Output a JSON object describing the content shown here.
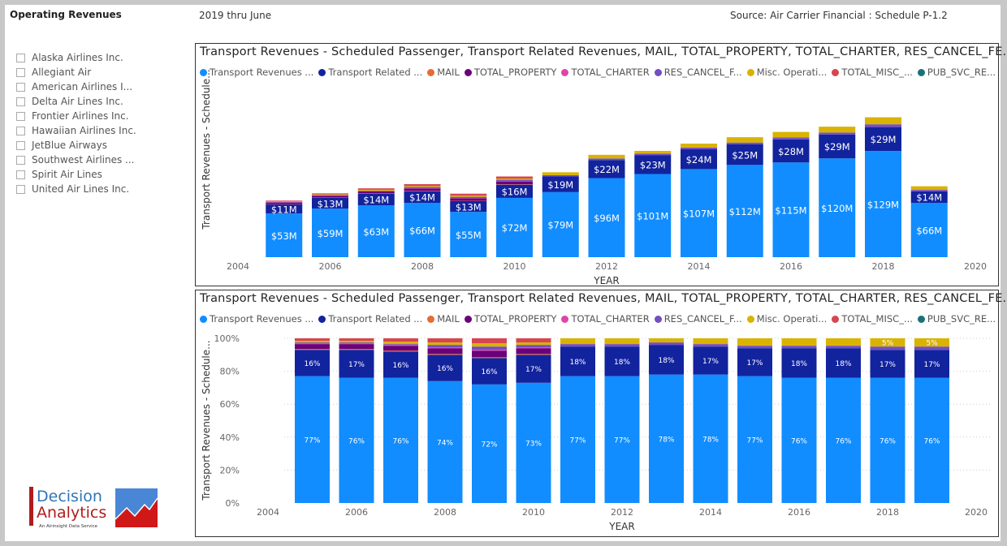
{
  "header": {
    "title": "Operating Revenues",
    "period": "2019 thru June",
    "source": "Source: Air Carrier Financial : Schedule P-1.2"
  },
  "slicer": {
    "items": [
      "Alaska Airlines Inc.",
      "Allegiant Air",
      "American Airlines I...",
      "Delta Air Lines Inc.",
      "Frontier Airlines Inc.",
      "Hawaiian Airlines Inc.",
      "JetBlue Airways",
      "Southwest Airlines ...",
      "Spirit Air Lines",
      "United Air Lines Inc."
    ]
  },
  "logo": {
    "line1": "Decision",
    "line2": "Analytics",
    "tagline": "An Airinsight Data Service"
  },
  "colors": {
    "Transport Revenues ...": "#118DFF",
    "Transport Related ...": "#12239E",
    "MAIL": "#E66C37",
    "TOTAL_PROPERTY": "#6B007B",
    "TOTAL_CHARTER": "#E044A7",
    "RES_CANCEL_F...": "#744EC2",
    "Misc. Operati...": "#D9B300",
    "TOTAL_MISC_...": "#D64550",
    "PUB_SVC_RE...": "#197278"
  },
  "chart_data": [
    {
      "type": "bar",
      "stacked": true,
      "title": "Transport Revenues - Scheduled Passenger, Transport Related Revenues, MAIL, TOTAL_PROPERTY, TOTAL_CHARTER, RES_CANCEL_FE...",
      "xlabel": "YEAR",
      "ylabel": "Transport Revenues - Schedule...",
      "xlim": [
        2004,
        2020
      ],
      "xticks": [
        "2004",
        "2006",
        "2008",
        "2010",
        "2012",
        "2014",
        "2016",
        "2018",
        "2020"
      ],
      "legend_position": "top-left",
      "grid": false,
      "x": [
        2005,
        2006,
        2007,
        2008,
        2009,
        2010,
        2011,
        2012,
        2013,
        2014,
        2015,
        2016,
        2017,
        2018,
        2019
      ],
      "series": [
        {
          "name": "Transport Revenues ...",
          "values": [
            53,
            59,
            63,
            66,
            55,
            72,
            79,
            96,
            101,
            107,
            112,
            115,
            120,
            129,
            66
          ],
          "labels": [
            "$53M",
            "$59M",
            "$63M",
            "$66M",
            "$55M",
            "$72M",
            "$79M",
            "$96M",
            "$101M",
            "$107M",
            "$112M",
            "$115M",
            "$120M",
            "$129M",
            "$66M"
          ]
        },
        {
          "name": "Transport Related ...",
          "values": [
            11,
            13,
            14,
            14,
            13,
            16,
            19,
            22,
            23,
            24,
            25,
            28,
            29,
            29,
            14
          ],
          "labels": [
            "$11M",
            "$13M",
            "$14M",
            "$14M",
            "$13M",
            "$16M",
            "$19M",
            "$22M",
            "$23M",
            "$24M",
            "$25M",
            "$28M",
            "$29M",
            "$29M",
            "$14M"
          ]
        },
        {
          "name": "MAIL",
          "values": [
            0.3,
            0.4,
            0.4,
            0.4,
            0.4,
            0.5,
            0,
            0,
            0,
            0,
            0,
            0,
            0,
            0,
            0
          ]
        },
        {
          "name": "TOTAL_PROPERTY",
          "values": [
            2.1,
            2.3,
            2.5,
            3.1,
            3.0,
            3.5,
            0,
            0,
            0,
            0,
            0,
            0,
            0,
            0,
            0
          ]
        },
        {
          "name": "TOTAL_CHARTER",
          "values": [
            0.3,
            0.4,
            0.4,
            0.4,
            0.4,
            0.5,
            0,
            0,
            0,
            0,
            0,
            0,
            0,
            0,
            0
          ]
        },
        {
          "name": "RES_CANCEL_F...",
          "values": [
            0.3,
            0.4,
            0.4,
            1.3,
            1.5,
            1.5,
            1.5,
            1.9,
            1.9,
            2.1,
            2.2,
            2.3,
            2.4,
            3.4,
            1.7
          ]
        },
        {
          "name": "Misc. Operati...",
          "values": [
            0.7,
            0.8,
            1.2,
            1.3,
            1.5,
            1.5,
            3.6,
            4.4,
            3.2,
            4.8,
            6.5,
            6.8,
            7.1,
            8.5,
            4.4
          ]
        },
        {
          "name": "TOTAL_MISC_...",
          "values": [
            1.0,
            1.2,
            1.7,
            2.2,
            2.3,
            2.5,
            0,
            0,
            0,
            0,
            0,
            0,
            0,
            0,
            0
          ]
        },
        {
          "name": "PUB_SVC_RE...",
          "values": [
            0,
            0,
            0,
            0,
            0,
            0,
            0,
            0,
            0,
            0,
            0,
            0,
            0,
            0,
            0
          ]
        }
      ]
    },
    {
      "type": "bar",
      "stacked": true,
      "percent": true,
      "title": "Transport Revenues - Scheduled Passenger, Transport Related Revenues, MAIL, TOTAL_PROPERTY, TOTAL_CHARTER, RES_CANCEL_FE...",
      "xlabel": "YEAR",
      "ylabel": "Transport Revenues - Schedule...",
      "xlim": [
        2004,
        2020
      ],
      "ylim": [
        0,
        100
      ],
      "xticks": [
        "2004",
        "2006",
        "2008",
        "2010",
        "2012",
        "2014",
        "2016",
        "2018",
        "2020"
      ],
      "yticks": [
        "0%",
        "20%",
        "40%",
        "60%",
        "80%",
        "100%"
      ],
      "legend_position": "top-left",
      "grid": true,
      "x": [
        2005,
        2006,
        2007,
        2008,
        2009,
        2010,
        2011,
        2012,
        2013,
        2014,
        2015,
        2016,
        2017,
        2018,
        2019
      ],
      "series": [
        {
          "name": "Transport Revenues ...",
          "values": [
            77,
            76,
            76,
            74,
            72,
            73,
            77,
            77,
            78,
            78,
            77,
            76,
            76,
            76,
            76
          ],
          "labels": [
            "77%",
            "76%",
            "76%",
            "74%",
            "72%",
            "73%",
            "77%",
            "77%",
            "78%",
            "78%",
            "77%",
            "76%",
            "76%",
            "76%",
            "76%"
          ]
        },
        {
          "name": "Transport Related ...",
          "values": [
            16,
            17,
            16,
            16,
            16,
            17,
            18,
            18,
            18,
            17,
            17,
            18,
            18,
            17,
            17
          ],
          "labels": [
            "16%",
            "17%",
            "16%",
            "16%",
            "16%",
            "17%",
            "18%",
            "18%",
            "18%",
            "17%",
            "17%",
            "18%",
            "18%",
            "17%",
            "17%"
          ]
        },
        {
          "name": "MAIL",
          "values": [
            0.5,
            0.5,
            0.5,
            0.5,
            0.5,
            0.5,
            0,
            0,
            0,
            0,
            0,
            0,
            0,
            0,
            0
          ]
        },
        {
          "name": "TOTAL_PROPERTY",
          "values": [
            3,
            3,
            3,
            3.5,
            4,
            3.5,
            0,
            0,
            0,
            0,
            0,
            0,
            0,
            0,
            0
          ]
        },
        {
          "name": "TOTAL_CHARTER",
          "values": [
            0.5,
            0.5,
            0.5,
            0.5,
            0.5,
            0.5,
            0,
            0,
            0,
            0,
            0,
            0,
            0,
            0,
            0
          ]
        },
        {
          "name": "RES_CANCEL_F...",
          "values": [
            0.5,
            0.5,
            0.5,
            1.5,
            2,
            1.5,
            1.5,
            1.5,
            1.5,
            1.5,
            1.5,
            1.5,
            1.5,
            2,
            2
          ]
        },
        {
          "name": "Misc. Operati...",
          "values": [
            1,
            1,
            1.5,
            1.5,
            2,
            1.5,
            3.5,
            3.5,
            2.5,
            3.5,
            4.5,
            4.5,
            4.5,
            5,
            5
          ],
          "labels": [
            "",
            "",
            "",
            "",
            "",
            "",
            "",
            "",
            "",
            "",
            "",
            "",
            "",
            "5%",
            "5%"
          ]
        },
        {
          "name": "TOTAL_MISC_...",
          "values": [
            1.5,
            1.5,
            2,
            2.5,
            3,
            2.5,
            0,
            0,
            0,
            0,
            0,
            0,
            0,
            0,
            0
          ]
        },
        {
          "name": "PUB_SVC_RE...",
          "values": [
            0,
            0,
            0,
            0,
            0,
            0,
            0,
            0,
            0,
            0,
            0,
            0,
            0,
            0,
            0
          ]
        }
      ]
    }
  ]
}
